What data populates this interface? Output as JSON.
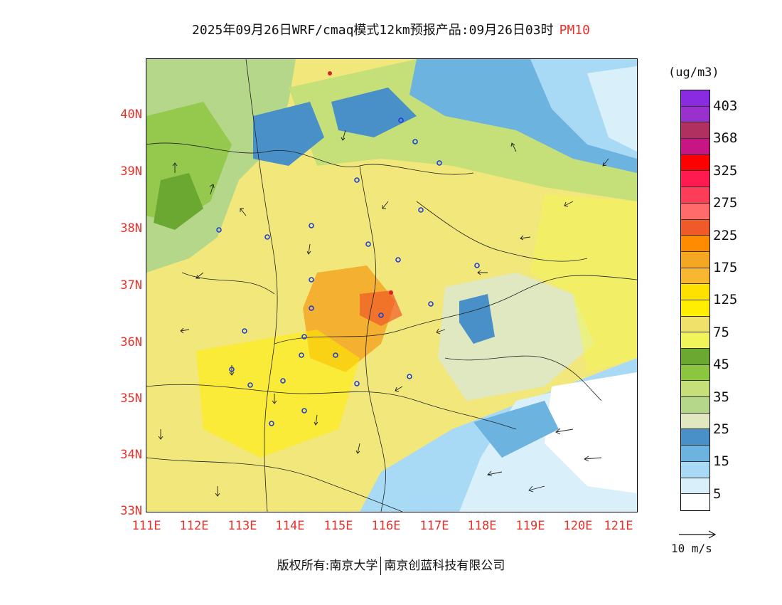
{
  "title": {
    "main": "2025年09月26日WRF/cmaq模式12km预报产品:09月26日03时",
    "pollutant": "PM10"
  },
  "axes": {
    "lat_labels": [
      "40N",
      "39N",
      "38N",
      "37N",
      "36N",
      "35N",
      "34N",
      "33N"
    ],
    "lon_labels": [
      "111E",
      "112E",
      "113E",
      "114E",
      "115E",
      "116E",
      "117E",
      "118E",
      "119E",
      "120E",
      "121E"
    ]
  },
  "legend": {
    "unit": "(ug/m3)",
    "levels": [
      {
        "label": "403",
        "color": "#8a2be2"
      },
      {
        "label": "",
        "color": "#9932cc"
      },
      {
        "label": "368",
        "color": "#b03060"
      },
      {
        "label": "",
        "color": "#c71585"
      },
      {
        "label": "325",
        "color": "#ff0000"
      },
      {
        "label": "",
        "color": "#ff1a4f"
      },
      {
        "label": "275",
        "color": "#ff3c5a"
      },
      {
        "label": "",
        "color": "#ff6a6a"
      },
      {
        "label": "225",
        "color": "#f05a28"
      },
      {
        "label": "",
        "color": "#ff8c00"
      },
      {
        "label": "175",
        "color": "#f5a623"
      },
      {
        "label": "",
        "color": "#f7b731"
      },
      {
        "label": "125",
        "color": "#ffe100"
      },
      {
        "label": "",
        "color": "#ffee00"
      },
      {
        "label": "75",
        "color": "#f0e16a"
      },
      {
        "label": "",
        "color": "#f2f55a"
      },
      {
        "label": "45",
        "color": "#6aa832"
      },
      {
        "label": "",
        "color": "#8cc63f"
      },
      {
        "label": "35",
        "color": "#c5df79"
      },
      {
        "label": "",
        "color": "#b5d78a"
      },
      {
        "label": "25",
        "color": "#dfe8c0"
      },
      {
        "label": "",
        "color": "#4a90c8"
      },
      {
        "label": "15",
        "color": "#6db3e0"
      },
      {
        "label": "",
        "color": "#a8daf5"
      },
      {
        "label": "5",
        "color": "#d9f0fb"
      },
      {
        "label": "",
        "color": "#ffffff"
      }
    ],
    "wind_scale": "10 m/s"
  },
  "footer": {
    "left": "版权所有:南京大学",
    "right": "南京创蓝科技有限公司"
  }
}
